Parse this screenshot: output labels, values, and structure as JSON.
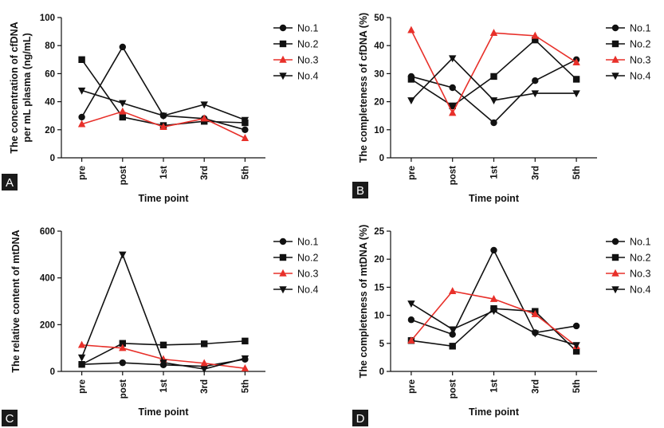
{
  "chart_data": [
    {
      "type": "line",
      "panel_label": "A",
      "categories": [
        "pre",
        "post",
        "1st",
        "3rd",
        "5th"
      ],
      "xlabel": "Time point",
      "ylabel": [
        "The concentration of cfDNA",
        "per mL plasma (ng/mL)"
      ],
      "ylim": [
        0,
        100
      ],
      "yticks": [
        "0",
        "20",
        "40",
        "60",
        "80",
        "100"
      ],
      "legend_position": "right",
      "series": [
        {
          "name": "No.1",
          "color": "#111111",
          "marker": "circle",
          "values": [
            29,
            79,
            30,
            28,
            20
          ]
        },
        {
          "name": "No.2",
          "color": "#111111",
          "marker": "square",
          "values": [
            70,
            29,
            23,
            26,
            25
          ]
        },
        {
          "name": "No.3",
          "color": "#e8302a",
          "marker": "triangle-up",
          "values": [
            24,
            33,
            22,
            28,
            14
          ]
        },
        {
          "name": "No.4",
          "color": "#111111",
          "marker": "triangle-down",
          "values": [
            48,
            39,
            30,
            38,
            27
          ]
        }
      ]
    },
    {
      "type": "line",
      "panel_label": "B",
      "categories": [
        "pre",
        "post",
        "1st",
        "3rd",
        "5th"
      ],
      "xlabel": "Time point",
      "ylabel": [
        "The completeness of cfDNA (%)"
      ],
      "ylim": [
        0,
        50
      ],
      "yticks": [
        "0",
        "10",
        "20",
        "30",
        "40",
        "50"
      ],
      "legend_position": "right",
      "series": [
        {
          "name": "No.1",
          "color": "#111111",
          "marker": "circle",
          "values": [
            29,
            25,
            12.5,
            27.5,
            35
          ]
        },
        {
          "name": "No.2",
          "color": "#111111",
          "marker": "square",
          "values": [
            28,
            18.5,
            29,
            42,
            28
          ]
        },
        {
          "name": "No.3",
          "color": "#e8302a",
          "marker": "triangle-up",
          "values": [
            45.5,
            16,
            44.5,
            43.5,
            34
          ]
        },
        {
          "name": "No.4",
          "color": "#111111",
          "marker": "triangle-down",
          "values": [
            20.5,
            35.5,
            20.5,
            23,
            23
          ]
        }
      ]
    },
    {
      "type": "line",
      "panel_label": "C",
      "categories": [
        "pre",
        "post",
        "1st",
        "3rd",
        "5th"
      ],
      "xlabel": "Time point",
      "ylabel": [
        "The relative content of mtDNA"
      ],
      "ylim": [
        0,
        600
      ],
      "yticks": [
        "0",
        "200",
        "400",
        "600"
      ],
      "ytick_values": [
        0,
        200,
        400,
        600
      ],
      "legend_position": "right",
      "series": [
        {
          "name": "No.1",
          "color": "#111111",
          "marker": "circle",
          "values": [
            30,
            37,
            28,
            22,
            52
          ]
        },
        {
          "name": "No.2",
          "color": "#111111",
          "marker": "square",
          "values": [
            30,
            120,
            113,
            118,
            130
          ]
        },
        {
          "name": "No.3",
          "color": "#e8302a",
          "marker": "triangle-up",
          "values": [
            113,
            100,
            52,
            35,
            13
          ]
        },
        {
          "name": "No.4",
          "color": "#111111",
          "marker": "triangle-down",
          "values": [
            60,
            500,
            38,
            10,
            56
          ]
        }
      ]
    },
    {
      "type": "line",
      "panel_label": "D",
      "categories": [
        "pre",
        "post",
        "1st",
        "3rd",
        "5th"
      ],
      "xlabel": "Time point",
      "ylabel": [
        "The completeness of mtDNA (%)"
      ],
      "ylim": [
        0,
        25
      ],
      "yticks": [
        "0",
        "5",
        "10",
        "15",
        "20",
        "25"
      ],
      "legend_position": "right",
      "series": [
        {
          "name": "No.1",
          "color": "#111111",
          "marker": "circle",
          "values": [
            9.2,
            6.6,
            21.6,
            6.9,
            8.1
          ]
        },
        {
          "name": "No.2",
          "color": "#111111",
          "marker": "square",
          "values": [
            5.5,
            4.5,
            11.2,
            10.7,
            3.6
          ]
        },
        {
          "name": "No.3",
          "color": "#e8302a",
          "marker": "triangle-up",
          "values": [
            5.5,
            14.3,
            12.9,
            10.2,
            4.5
          ]
        },
        {
          "name": "No.4",
          "color": "#111111",
          "marker": "triangle-down",
          "values": [
            12.1,
            7.5,
            10.8,
            6.8,
            4.7
          ]
        }
      ]
    }
  ]
}
